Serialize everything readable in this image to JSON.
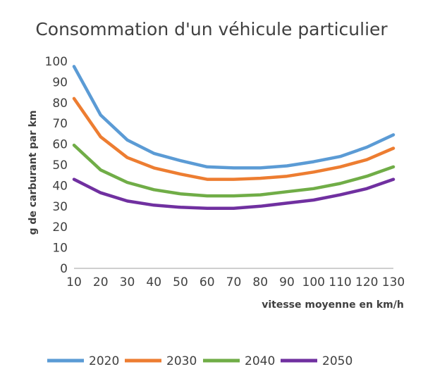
{
  "chart_data": {
    "type": "line",
    "title": "Consommation d'un véhicule particulier",
    "xlabel": "vitesse moyenne en km/h",
    "ylabel": "g de carburant par km",
    "x": [
      10,
      20,
      30,
      40,
      50,
      60,
      70,
      80,
      90,
      100,
      110,
      120,
      130
    ],
    "xlim": [
      10,
      130
    ],
    "ylim": [
      0,
      100
    ],
    "yticks": [
      0,
      10,
      20,
      30,
      40,
      50,
      60,
      70,
      80,
      90,
      100
    ],
    "grid": false,
    "legend": "bottom",
    "series": [
      {
        "name": "2020",
        "color": "#5b9bd5",
        "values": [
          97.5,
          74,
          62,
          55.5,
          52,
          49,
          48.5,
          48.5,
          49.5,
          51.5,
          54,
          58.5,
          64.5
        ]
      },
      {
        "name": "2030",
        "color": "#ed7d31",
        "values": [
          82,
          63.5,
          53.5,
          48.5,
          45.5,
          43,
          43,
          43.5,
          44.5,
          46.5,
          49,
          52.5,
          58
        ]
      },
      {
        "name": "2040",
        "color": "#70ad47",
        "values": [
          59.5,
          47.5,
          41.5,
          38,
          36,
          35,
          35,
          35.5,
          37,
          38.5,
          41,
          44.5,
          49
        ]
      },
      {
        "name": "2050",
        "color": "#7030a0",
        "values": [
          43,
          36.5,
          32.5,
          30.5,
          29.5,
          29,
          29,
          30,
          31.5,
          33,
          35.5,
          38.5,
          43
        ]
      }
    ]
  }
}
